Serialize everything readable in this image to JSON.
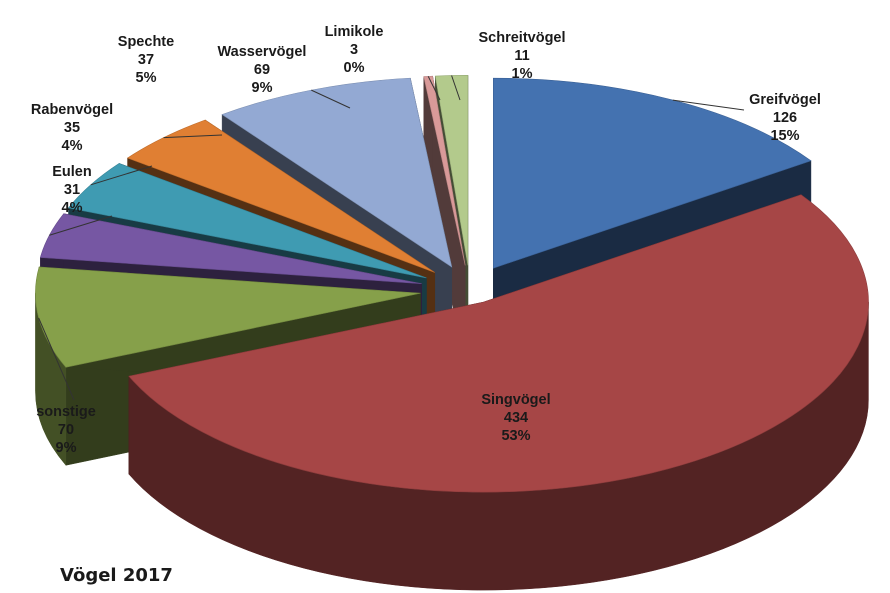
{
  "chart_data": {
    "type": "pie",
    "title": "Vögel 2017",
    "three_d": true,
    "exploded": true,
    "slices": [
      {
        "name": "Greifvögel",
        "value": 126,
        "percent": "15%",
        "color": "#4472b0"
      },
      {
        "name": "Singvögel",
        "value": 434,
        "percent": "53%",
        "color": "#a64646"
      },
      {
        "name": "sonstige",
        "value": 70,
        "percent": "9%",
        "color": "#86a04a"
      },
      {
        "name": "Eulen",
        "value": 31,
        "percent": "4%",
        "color": "#7657a3"
      },
      {
        "name": "Rabenvögel",
        "value": 35,
        "percent": "4%",
        "color": "#3f9bb2"
      },
      {
        "name": "Spechte",
        "value": 37,
        "percent": "5%",
        "color": "#e07f33"
      },
      {
        "name": "Wasservögel",
        "value": 69,
        "percent": "9%",
        "color": "#93a9d3"
      },
      {
        "name": "Limikole",
        "value": 3,
        "percent": "0%",
        "color": "#d99a99"
      },
      {
        "name": "Schreitvögel",
        "value": 11,
        "percent": "1%",
        "color": "#b3ca8c"
      }
    ]
  }
}
